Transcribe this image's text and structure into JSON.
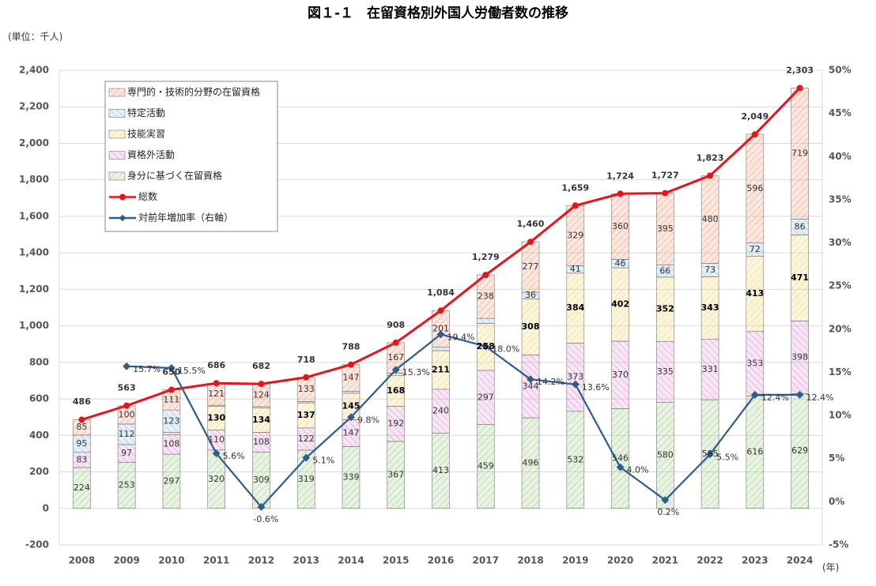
{
  "chart_data": {
    "type": "bar",
    "title": "図１-１　在留資格別外国人労働者数の推移",
    "unit_label": "(単位：千人)",
    "x_unit": "(年)",
    "categories": [
      "2008",
      "2009",
      "2010",
      "2011",
      "2012",
      "2013",
      "2014",
      "2015",
      "2016",
      "2017",
      "2018",
      "2019",
      "2020",
      "2021",
      "2022",
      "2023",
      "2024"
    ],
    "series": [
      {
        "name": "身分に基づく在留資格",
        "color": "#a9d18e",
        "values": [
          224,
          253,
          297,
          320,
          309,
          319,
          339,
          367,
          413,
          459,
          496,
          532,
          546,
          580,
          595,
          616,
          629
        ]
      },
      {
        "name": "資格外活動",
        "color": "#e59ad6",
        "values": [
          83,
          97,
          108,
          110,
          108,
          122,
          147,
          192,
          240,
          297,
          344,
          373,
          370,
          335,
          331,
          353,
          398
        ]
      },
      {
        "name": "技能実習",
        "color": "#f5d77a",
        "values": [
          null,
          null,
          11,
          130,
          134,
          137,
          145,
          168,
          211,
          258,
          308,
          384,
          402,
          352,
          343,
          413,
          471
        ],
        "value_labels": [
          null,
          null,
          null,
          "130",
          "134",
          "137",
          "145",
          "168",
          "211",
          "258",
          "308",
          "384",
          "402",
          "352",
          "343",
          "413",
          "471"
        ]
      },
      {
        "name": "特定活動",
        "color": "#9dc3e6",
        "values": [
          95,
          112,
          123,
          5,
          7,
          7,
          10,
          14,
          19,
          27,
          36,
          41,
          46,
          66,
          73,
          72,
          86
        ],
        "value_labels": [
          "95",
          "112",
          "123",
          null,
          null,
          null,
          null,
          null,
          null,
          null,
          "36",
          "41",
          "46",
          "66",
          "73",
          "72",
          "86"
        ]
      },
      {
        "name": "専門的・技術的分野の在留資格",
        "color": "#f4a582",
        "values": [
          85,
          100,
          111,
          121,
          124,
          133,
          147,
          167,
          201,
          238,
          277,
          329,
          360,
          395,
          480,
          596,
          719
        ]
      },
      {
        "name": "総数",
        "type": "line",
        "color": "#e8141b",
        "values": [
          486,
          563,
          650,
          686,
          682,
          718,
          788,
          908,
          1084,
          1279,
          1460,
          1659,
          1724,
          1727,
          1823,
          2049,
          2303
        ],
        "value_labels": [
          "486",
          "563",
          "650",
          "686",
          "682",
          "718",
          "788",
          "908",
          "1,084",
          "1,279",
          "1,460",
          "1,659",
          "1,724",
          "1,727",
          "1,823",
          "2,049",
          "2,303"
        ]
      },
      {
        "name": "対前年増加率（右軸）",
        "type": "line",
        "axis": "y2",
        "color": "#2e5c8e",
        "values": [
          null,
          15.7,
          15.5,
          5.6,
          -0.6,
          5.1,
          9.8,
          15.3,
          19.4,
          18.0,
          14.2,
          13.6,
          4.0,
          0.2,
          5.5,
          12.4,
          12.4
        ],
        "value_labels": [
          null,
          "15.7%",
          "15.5%",
          "5.6%",
          "-0.6%",
          "5.1%",
          "9.8%",
          "15.3%",
          "19.4%",
          "18.0%",
          "14.2%",
          "13.6%",
          "4.0%",
          "0.2%",
          "5.5%",
          "12.4%",
          "12.4%"
        ]
      }
    ],
    "ylim": [
      -200,
      2400
    ],
    "yticks": [
      -200,
      0,
      200,
      400,
      600,
      800,
      {
        "value": 1000,
        "label": "1,000"
      },
      {
        "value": 1200,
        "label": "1,200"
      },
      {
        "value": 1400,
        "label": "1,400"
      },
      {
        "value": 1600,
        "label": "1,600"
      },
      {
        "value": 1800,
        "label": "1,800"
      },
      {
        "value": 2000,
        "label": "2,000"
      },
      {
        "value": 2200,
        "label": "2,200"
      },
      {
        "value": 2400,
        "label": "2,400"
      }
    ],
    "y2lim": [
      -5,
      50
    ],
    "y2ticks": [
      {
        "value": -5,
        "label": "-5%"
      },
      {
        "value": 0,
        "label": "0%"
      },
      {
        "value": 5,
        "label": "5%"
      },
      {
        "value": 10,
        "label": "10%"
      },
      {
        "value": 15,
        "label": "15%"
      },
      {
        "value": 20,
        "label": "20%"
      },
      {
        "value": 25,
        "label": "25%"
      },
      {
        "value": 30,
        "label": "30%"
      },
      {
        "value": 35,
        "label": "35%"
      },
      {
        "value": 40,
        "label": "40%"
      },
      {
        "value": 45,
        "label": "45%"
      },
      {
        "value": 50,
        "label": "50%"
      }
    ],
    "grid": true,
    "legend": "upper left"
  }
}
